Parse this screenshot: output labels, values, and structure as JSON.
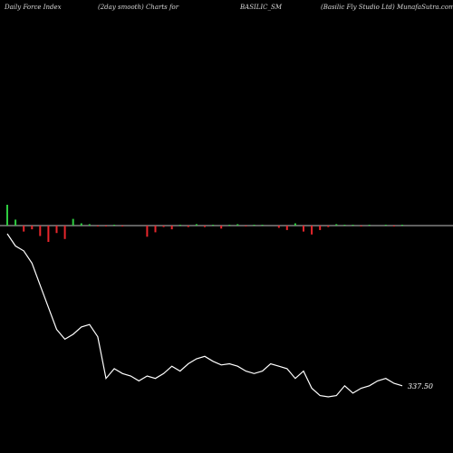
{
  "header": {
    "left": "Daily Force  Index",
    "center_left": "(2day smooth) Charts for",
    "center": "BASILIC_SM",
    "right": "(Basilic Fly Studio  Ltd) MunafaSutra.com"
  },
  "chart_data": {
    "type": "line",
    "last_value_label": "337.50",
    "colors": {
      "line": "#ffffff",
      "zero_line": "#ffffff",
      "positive": "#2ecc40",
      "negative": "#e8262c",
      "background": "#000000"
    },
    "price_series": [
      462,
      452,
      448,
      438,
      420,
      402,
      384,
      376,
      380,
      386,
      388,
      378,
      344,
      352,
      348,
      346,
      342,
      346,
      344,
      348,
      354,
      350,
      356,
      360,
      362,
      358,
      355,
      356,
      354,
      350,
      348,
      350,
      356,
      354,
      352,
      344,
      350,
      336,
      330,
      329,
      330,
      338,
      332,
      336,
      338,
      342,
      344,
      340,
      338
    ],
    "force_index": [
      28,
      8,
      -8,
      -5,
      -14,
      -22,
      -10,
      -18,
      9,
      3,
      2,
      -1,
      -1,
      1,
      -1,
      0,
      0,
      -15,
      -9,
      -2,
      -5,
      1,
      -2,
      2,
      -2,
      1,
      -4,
      1,
      2,
      -1,
      1,
      1,
      0,
      -3,
      -6,
      3,
      -8,
      -12,
      -6,
      -2,
      2,
      1,
      1,
      -1,
      1,
      0,
      1,
      -1,
      1
    ]
  }
}
